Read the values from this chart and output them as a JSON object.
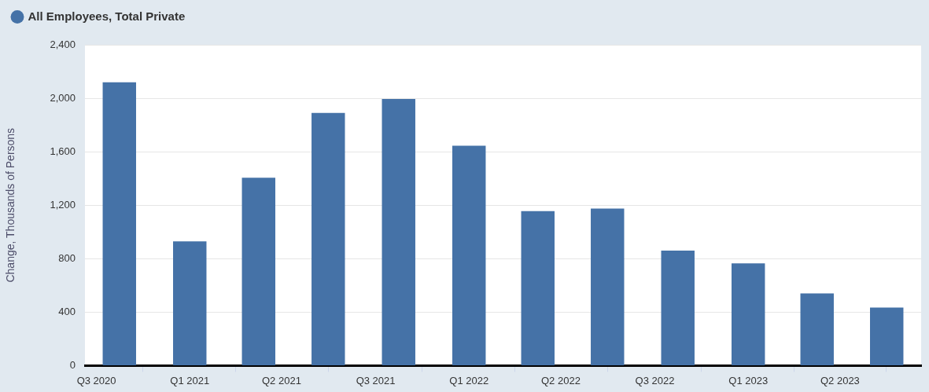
{
  "chart_data": {
    "type": "bar",
    "ylabel": "Change, Thousands of Persons",
    "x": [
      "2020-10-01",
      "2021-01-01",
      "2021-04-01",
      "2021-07-01",
      "2021-10-01",
      "2022-01-01",
      "2022-04-01",
      "2022-07-01",
      "2022-10-01",
      "2023-01-01",
      "2023-04-01",
      "2023-07-01"
    ],
    "series": [
      {
        "name": "All Employees, Total Private",
        "color": "#4572a7",
        "values": [
          2120,
          930,
          1405,
          1890,
          1995,
          1645,
          1155,
          1175,
          860,
          765,
          540,
          435
        ]
      }
    ],
    "xlim": [
      "2020-08-17",
      "2023-08-15"
    ],
    "xticks": [
      {
        "value": "2020-09-01",
        "label": "Q3 2020"
      },
      {
        "value": "2021-01-01",
        "label": "Q1 2021"
      },
      {
        "value": "2021-05-01",
        "label": "Q2 2021"
      },
      {
        "value": "2021-09-01",
        "label": "Q3 2021"
      },
      {
        "value": "2022-01-01",
        "label": "Q1 2022"
      },
      {
        "value": "2022-05-01",
        "label": "Q2 2022"
      },
      {
        "value": "2022-09-01",
        "label": "Q3 2022"
      },
      {
        "value": "2023-01-01",
        "label": "Q1 2023"
      },
      {
        "value": "2023-05-01",
        "label": "Q2 2023"
      }
    ],
    "ylim": [
      0,
      2400
    ],
    "yticks": [
      0,
      400,
      800,
      {
        "value": 1200,
        "label": "1,200"
      },
      {
        "value": 1600,
        "label": "1,600"
      },
      {
        "value": 2000,
        "label": "2,000"
      },
      {
        "value": 2400,
        "label": "2,400"
      }
    ],
    "grid": "y",
    "legend": "top left"
  }
}
